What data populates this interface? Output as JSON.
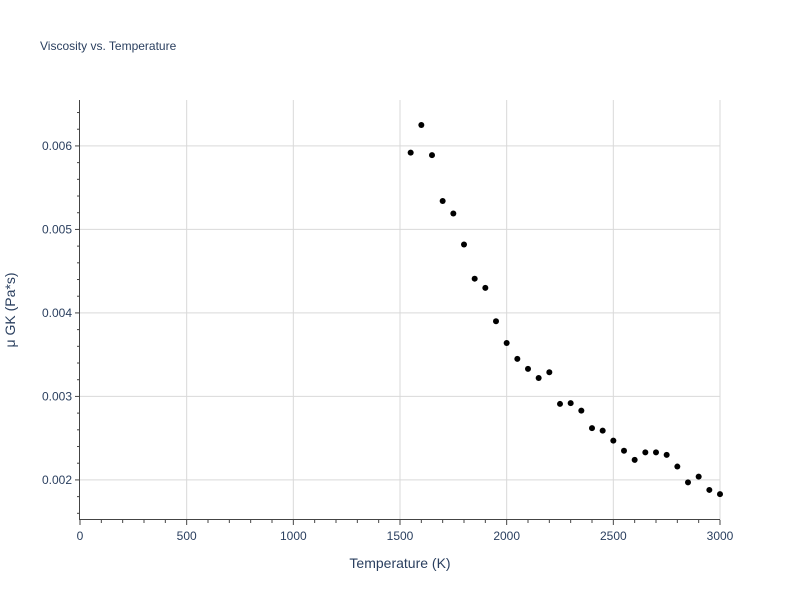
{
  "chart_data": {
    "type": "scatter",
    "title": "Viscosity vs. Temperature",
    "xlabel": "Temperature (K)",
    "ylabel": "μ GK (Pa*s)",
    "xlim": [
      0,
      3000
    ],
    "ylim": [
      0.00152,
      0.00655
    ],
    "xticks": [
      0,
      500,
      1000,
      1500,
      2000,
      2500,
      3000
    ],
    "xtick_labels": [
      "0",
      "500",
      "1000",
      "1500",
      "2000",
      "2500",
      "3000"
    ],
    "yticks": [
      0.002,
      0.003,
      0.004,
      0.005,
      0.006
    ],
    "ytick_labels": [
      "0.002",
      "0.003",
      "0.004",
      "0.005",
      "0.006"
    ],
    "grid": true,
    "marker_color": "#000000",
    "series": [
      {
        "name": "μ GK",
        "x": [
          1550,
          1600,
          1650,
          1700,
          1750,
          1800,
          1850,
          1900,
          1950,
          2000,
          2050,
          2100,
          2150,
          2200,
          2250,
          2300,
          2350,
          2400,
          2450,
          2500,
          2550,
          2600,
          2650,
          2700,
          2750,
          2800,
          2850,
          2900,
          2950,
          3000
        ],
        "y": [
          0.00592,
          0.00625,
          0.00589,
          0.00534,
          0.00519,
          0.00482,
          0.00441,
          0.0043,
          0.0039,
          0.00364,
          0.00345,
          0.00333,
          0.00322,
          0.00329,
          0.00291,
          0.00292,
          0.00283,
          0.00262,
          0.00259,
          0.00247,
          0.00235,
          0.00224,
          0.00233,
          0.00233,
          0.0023,
          0.00216,
          0.00197,
          0.00204,
          0.00188,
          0.00183
        ]
      }
    ]
  }
}
